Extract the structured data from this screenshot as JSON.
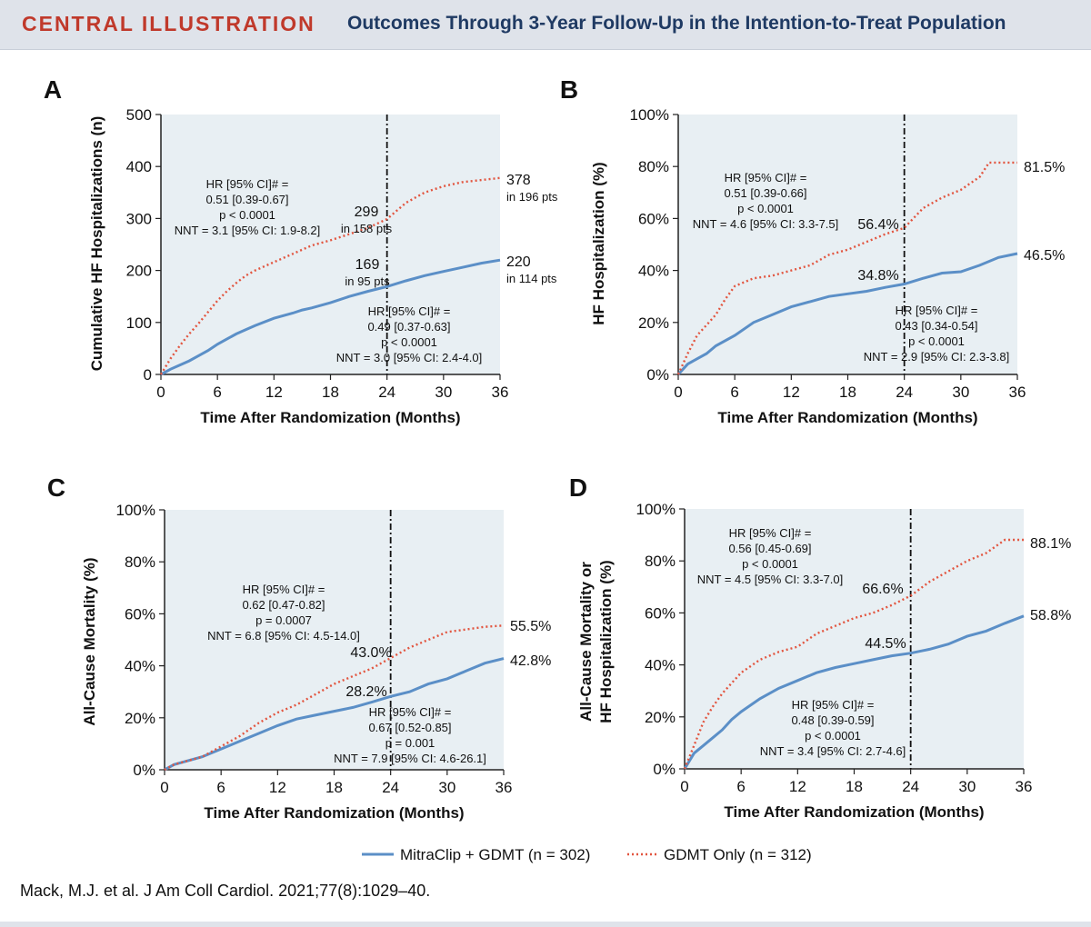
{
  "banner": {
    "label": "CENTRAL ILLUSTRATION",
    "title": "Outcomes Through 3-Year Follow-Up in the Intention-to-Treat Population"
  },
  "citation": "Mack, M.J. et al. J Am Coll Cardiol. 2021;77(8):1029–40.",
  "colors": {
    "mitraclip": "#5b8fc7",
    "gdmt": "#e2553f",
    "plot_bg": "#e8eff3"
  },
  "legend": {
    "mitraclip": "MitraClip + GDMT (n = 302)",
    "gdmt": "GDMT Only (n = 312)"
  },
  "chart_data": [
    {
      "panel": "A",
      "type": "line",
      "title": "",
      "xlabel": "Time After Randomization (Months)",
      "ylabel": "Cumulative HF Hospitalizations (n)",
      "xlim": [
        0,
        36
      ],
      "ylim": [
        0,
        500
      ],
      "xticks": [
        0,
        6,
        12,
        18,
        24,
        30,
        36
      ],
      "yticks": [
        0,
        100,
        200,
        300,
        400,
        500
      ],
      "ytick_labels": [
        "0",
        "100",
        "200",
        "300",
        "400",
        "500"
      ],
      "series": [
        {
          "name": "MitraClip + GDMT (n = 302)",
          "key": "mitraclip",
          "x": [
            0,
            1,
            2,
            3,
            4,
            5,
            6,
            7,
            8,
            9,
            10,
            12,
            14,
            15,
            16,
            18,
            20,
            22,
            24,
            26,
            28,
            30,
            32,
            34,
            36
          ],
          "y": [
            0,
            10,
            18,
            26,
            36,
            46,
            58,
            68,
            78,
            86,
            94,
            108,
            118,
            124,
            128,
            138,
            150,
            160,
            169,
            180,
            190,
            198,
            206,
            214,
            220
          ]
        },
        {
          "name": "GDMT Only (n = 312)",
          "key": "gdmt",
          "x": [
            0,
            1,
            2,
            3,
            4,
            5,
            6,
            7,
            8,
            9,
            10,
            12,
            14,
            16,
            18,
            20,
            22,
            24,
            26,
            28,
            30,
            32,
            34,
            36
          ],
          "y": [
            0,
            30,
            55,
            78,
            98,
            120,
            142,
            160,
            176,
            190,
            200,
            216,
            232,
            248,
            258,
            270,
            282,
            299,
            330,
            350,
            362,
            370,
            374,
            378
          ]
        }
      ],
      "annotations": [
        {
          "lines": [
            "HR [95% CI]# =",
            "0.51 [0.39-0.67]",
            "p < 0.0001",
            "NNT = 3.1 [95% CI: 1.9-8.2]"
          ]
        },
        {
          "lines": [
            "HR [95% CI]# =",
            "0.49 [0.37-0.63]",
            "p < 0.0001",
            "NNT = 3.0 [95% CI: 2.4-4.0]"
          ]
        }
      ],
      "point_labels": [
        {
          "series": "gdmt",
          "value": "299",
          "sub": "in 158 pts"
        },
        {
          "series": "mitraclip",
          "value": "169",
          "sub": "in 95 pts"
        },
        {
          "series": "gdmt",
          "value": "378",
          "sub": "in 196 pts"
        },
        {
          "series": "mitraclip",
          "value": "220",
          "sub": "in 114 pts"
        }
      ]
    },
    {
      "panel": "B",
      "type": "line",
      "title": "",
      "xlabel": "Time After Randomization (Months)",
      "ylabel": "HF Hospitalization (%)",
      "xlim": [
        0,
        36
      ],
      "ylim": [
        0,
        100
      ],
      "xticks": [
        0,
        6,
        12,
        18,
        24,
        30,
        36
      ],
      "yticks": [
        0,
        20,
        40,
        60,
        80,
        100
      ],
      "ytick_labels": [
        "0%",
        "20%",
        "40%",
        "60%",
        "80%",
        "100%"
      ],
      "series": [
        {
          "name": "MitraClip + GDMT (n = 302)",
          "key": "mitraclip",
          "x": [
            0,
            1,
            2,
            3,
            4,
            6,
            8,
            10,
            12,
            14,
            16,
            18,
            20,
            22,
            24,
            26,
            28,
            30,
            32,
            34,
            36
          ],
          "y": [
            0,
            4,
            6,
            8,
            11,
            15,
            20,
            23,
            26,
            28,
            30,
            31,
            32,
            33.5,
            34.8,
            37,
            39,
            39.5,
            42,
            45,
            46.5
          ]
        },
        {
          "name": "GDMT Only (n = 312)",
          "key": "gdmt",
          "x": [
            0,
            1,
            2,
            3,
            4,
            5,
            6,
            8,
            10,
            12,
            14,
            16,
            18,
            20,
            22,
            24,
            26,
            28,
            30,
            32,
            33,
            36
          ],
          "y": [
            0,
            8,
            15,
            19,
            23,
            29,
            34,
            37,
            38,
            40,
            42,
            46,
            48,
            51,
            54,
            56.4,
            64,
            68,
            71,
            76,
            81.5,
            81.5
          ]
        }
      ],
      "annotations": [
        {
          "lines": [
            "HR [95% CI]# =",
            "0.51 [0.39-0.66]",
            "p < 0.0001",
            "NNT = 4.6 [95% CI: 3.3-7.5]"
          ]
        },
        {
          "lines": [
            "HR [95% CI]# =",
            "0.43 [0.34-0.54]",
            "p < 0.0001",
            "NNT = 2.9 [95% CI: 2.3-3.8]"
          ]
        }
      ],
      "point_labels": [
        {
          "series": "gdmt",
          "value": "56.4%"
        },
        {
          "series": "mitraclip",
          "value": "34.8%"
        },
        {
          "series": "gdmt",
          "value": "81.5%"
        },
        {
          "series": "mitraclip",
          "value": "46.5%"
        }
      ]
    },
    {
      "panel": "C",
      "type": "line",
      "title": "",
      "xlabel": "Time After Randomization (Months)",
      "ylabel": "All-Cause Mortality (%)",
      "xlim": [
        0,
        36
      ],
      "ylim": [
        0,
        100
      ],
      "xticks": [
        0,
        6,
        12,
        18,
        24,
        30,
        36
      ],
      "yticks": [
        0,
        20,
        40,
        60,
        80,
        100
      ],
      "ytick_labels": [
        "0%",
        "20%",
        "40%",
        "60%",
        "80%",
        "100%"
      ],
      "series": [
        {
          "name": "MitraClip + GDMT (n = 302)",
          "key": "mitraclip",
          "x": [
            0,
            1,
            2,
            3,
            4,
            6,
            8,
            10,
            12,
            14,
            16,
            18,
            20,
            22,
            24,
            26,
            28,
            30,
            32,
            34,
            36
          ],
          "y": [
            0,
            2,
            3,
            4,
            5,
            8,
            11,
            14,
            17,
            19.5,
            21,
            22.5,
            24,
            26,
            28.2,
            30,
            33,
            35,
            38,
            41,
            42.8
          ]
        },
        {
          "name": "GDMT Only (n = 312)",
          "key": "gdmt",
          "x": [
            0,
            1,
            2,
            3,
            4,
            6,
            8,
            10,
            12,
            14,
            16,
            18,
            20,
            22,
            24,
            26,
            28,
            30,
            32,
            34,
            36
          ],
          "y": [
            0,
            2,
            3,
            4,
            5,
            9,
            13,
            18,
            22,
            25,
            29,
            33,
            36,
            39,
            43.0,
            47,
            50,
            53,
            54,
            55,
            55.5
          ]
        }
      ],
      "annotations": [
        {
          "lines": [
            "HR [95% CI]# =",
            "0.62 [0.47-0.82]",
            "p = 0.0007",
            "NNT = 6.8 [95% CI: 4.5-14.0]"
          ]
        },
        {
          "lines": [
            "HR [95% CI]# =",
            "0.67 [0.52-0.85]",
            "p = 0.001",
            "NNT = 7.9 [95% CI: 4.6-26.1]"
          ]
        }
      ],
      "point_labels": [
        {
          "series": "gdmt",
          "value": "43.0%"
        },
        {
          "series": "mitraclip",
          "value": "28.2%"
        },
        {
          "series": "gdmt",
          "value": "55.5%"
        },
        {
          "series": "mitraclip",
          "value": "42.8%"
        }
      ]
    },
    {
      "panel": "D",
      "type": "line",
      "title": "",
      "xlabel": "Time After Randomization (Months)",
      "ylabel": "All-Cause Mortality or HF Hospitalization (%)",
      "ylabel_lines": [
        "All-Cause Mortality or",
        "HF Hospitalization (%)"
      ],
      "xlim": [
        0,
        36
      ],
      "ylim": [
        0,
        100
      ],
      "xticks": [
        0,
        6,
        12,
        18,
        24,
        30,
        36
      ],
      "yticks": [
        0,
        20,
        40,
        60,
        80,
        100
      ],
      "ytick_labels": [
        "0%",
        "20%",
        "40%",
        "60%",
        "80%",
        "100%"
      ],
      "series": [
        {
          "name": "MitraClip + GDMT (n = 302)",
          "key": "mitraclip",
          "x": [
            0,
            1,
            2,
            3,
            4,
            5,
            6,
            8,
            10,
            12,
            14,
            16,
            18,
            20,
            22,
            24,
            26,
            28,
            30,
            32,
            34,
            36
          ],
          "y": [
            0,
            6,
            9,
            12,
            15,
            19,
            22,
            27,
            31,
            34,
            37,
            39,
            40.5,
            42,
            43.5,
            44.5,
            46,
            48,
            51,
            53,
            56,
            58.8
          ]
        },
        {
          "name": "GDMT Only (n = 312)",
          "key": "gdmt",
          "x": [
            0,
            1,
            2,
            3,
            4,
            5,
            6,
            8,
            10,
            12,
            14,
            16,
            18,
            20,
            22,
            24,
            26,
            28,
            30,
            32,
            34,
            36
          ],
          "y": [
            0,
            9,
            18,
            24,
            29,
            33,
            37,
            42,
            45,
            47,
            52,
            55,
            58,
            60,
            63,
            66.6,
            72,
            76,
            80,
            83,
            88.1,
            88.1
          ]
        }
      ],
      "annotations": [
        {
          "lines": [
            "HR [95% CI]# =",
            "0.56 [0.45-0.69]",
            "p < 0.0001",
            "NNT = 4.5 [95% CI: 3.3-7.0]"
          ]
        },
        {
          "lines": [
            "HR [95% CI]# =",
            "0.48 [0.39-0.59]",
            "p < 0.0001",
            "NNT = 3.4 [95% CI: 2.7-4.6]"
          ]
        }
      ],
      "point_labels": [
        {
          "series": "gdmt",
          "value": "66.6%"
        },
        {
          "series": "mitraclip",
          "value": "44.5%"
        },
        {
          "series": "gdmt",
          "value": "88.1%"
        },
        {
          "series": "mitraclip",
          "value": "58.8%"
        }
      ]
    }
  ]
}
